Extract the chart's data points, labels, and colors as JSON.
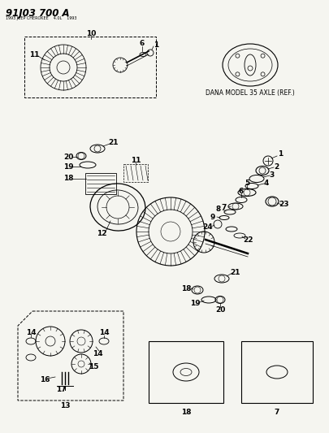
{
  "title": "91J03 700 A",
  "subtitle_small": "1993 JEEP CHEROKEE    4.0L    1993",
  "bg_color": "#f5f5f0",
  "text_color": "#000000",
  "dana_label": "DANA MODEL 35 AXLE (REF.)"
}
